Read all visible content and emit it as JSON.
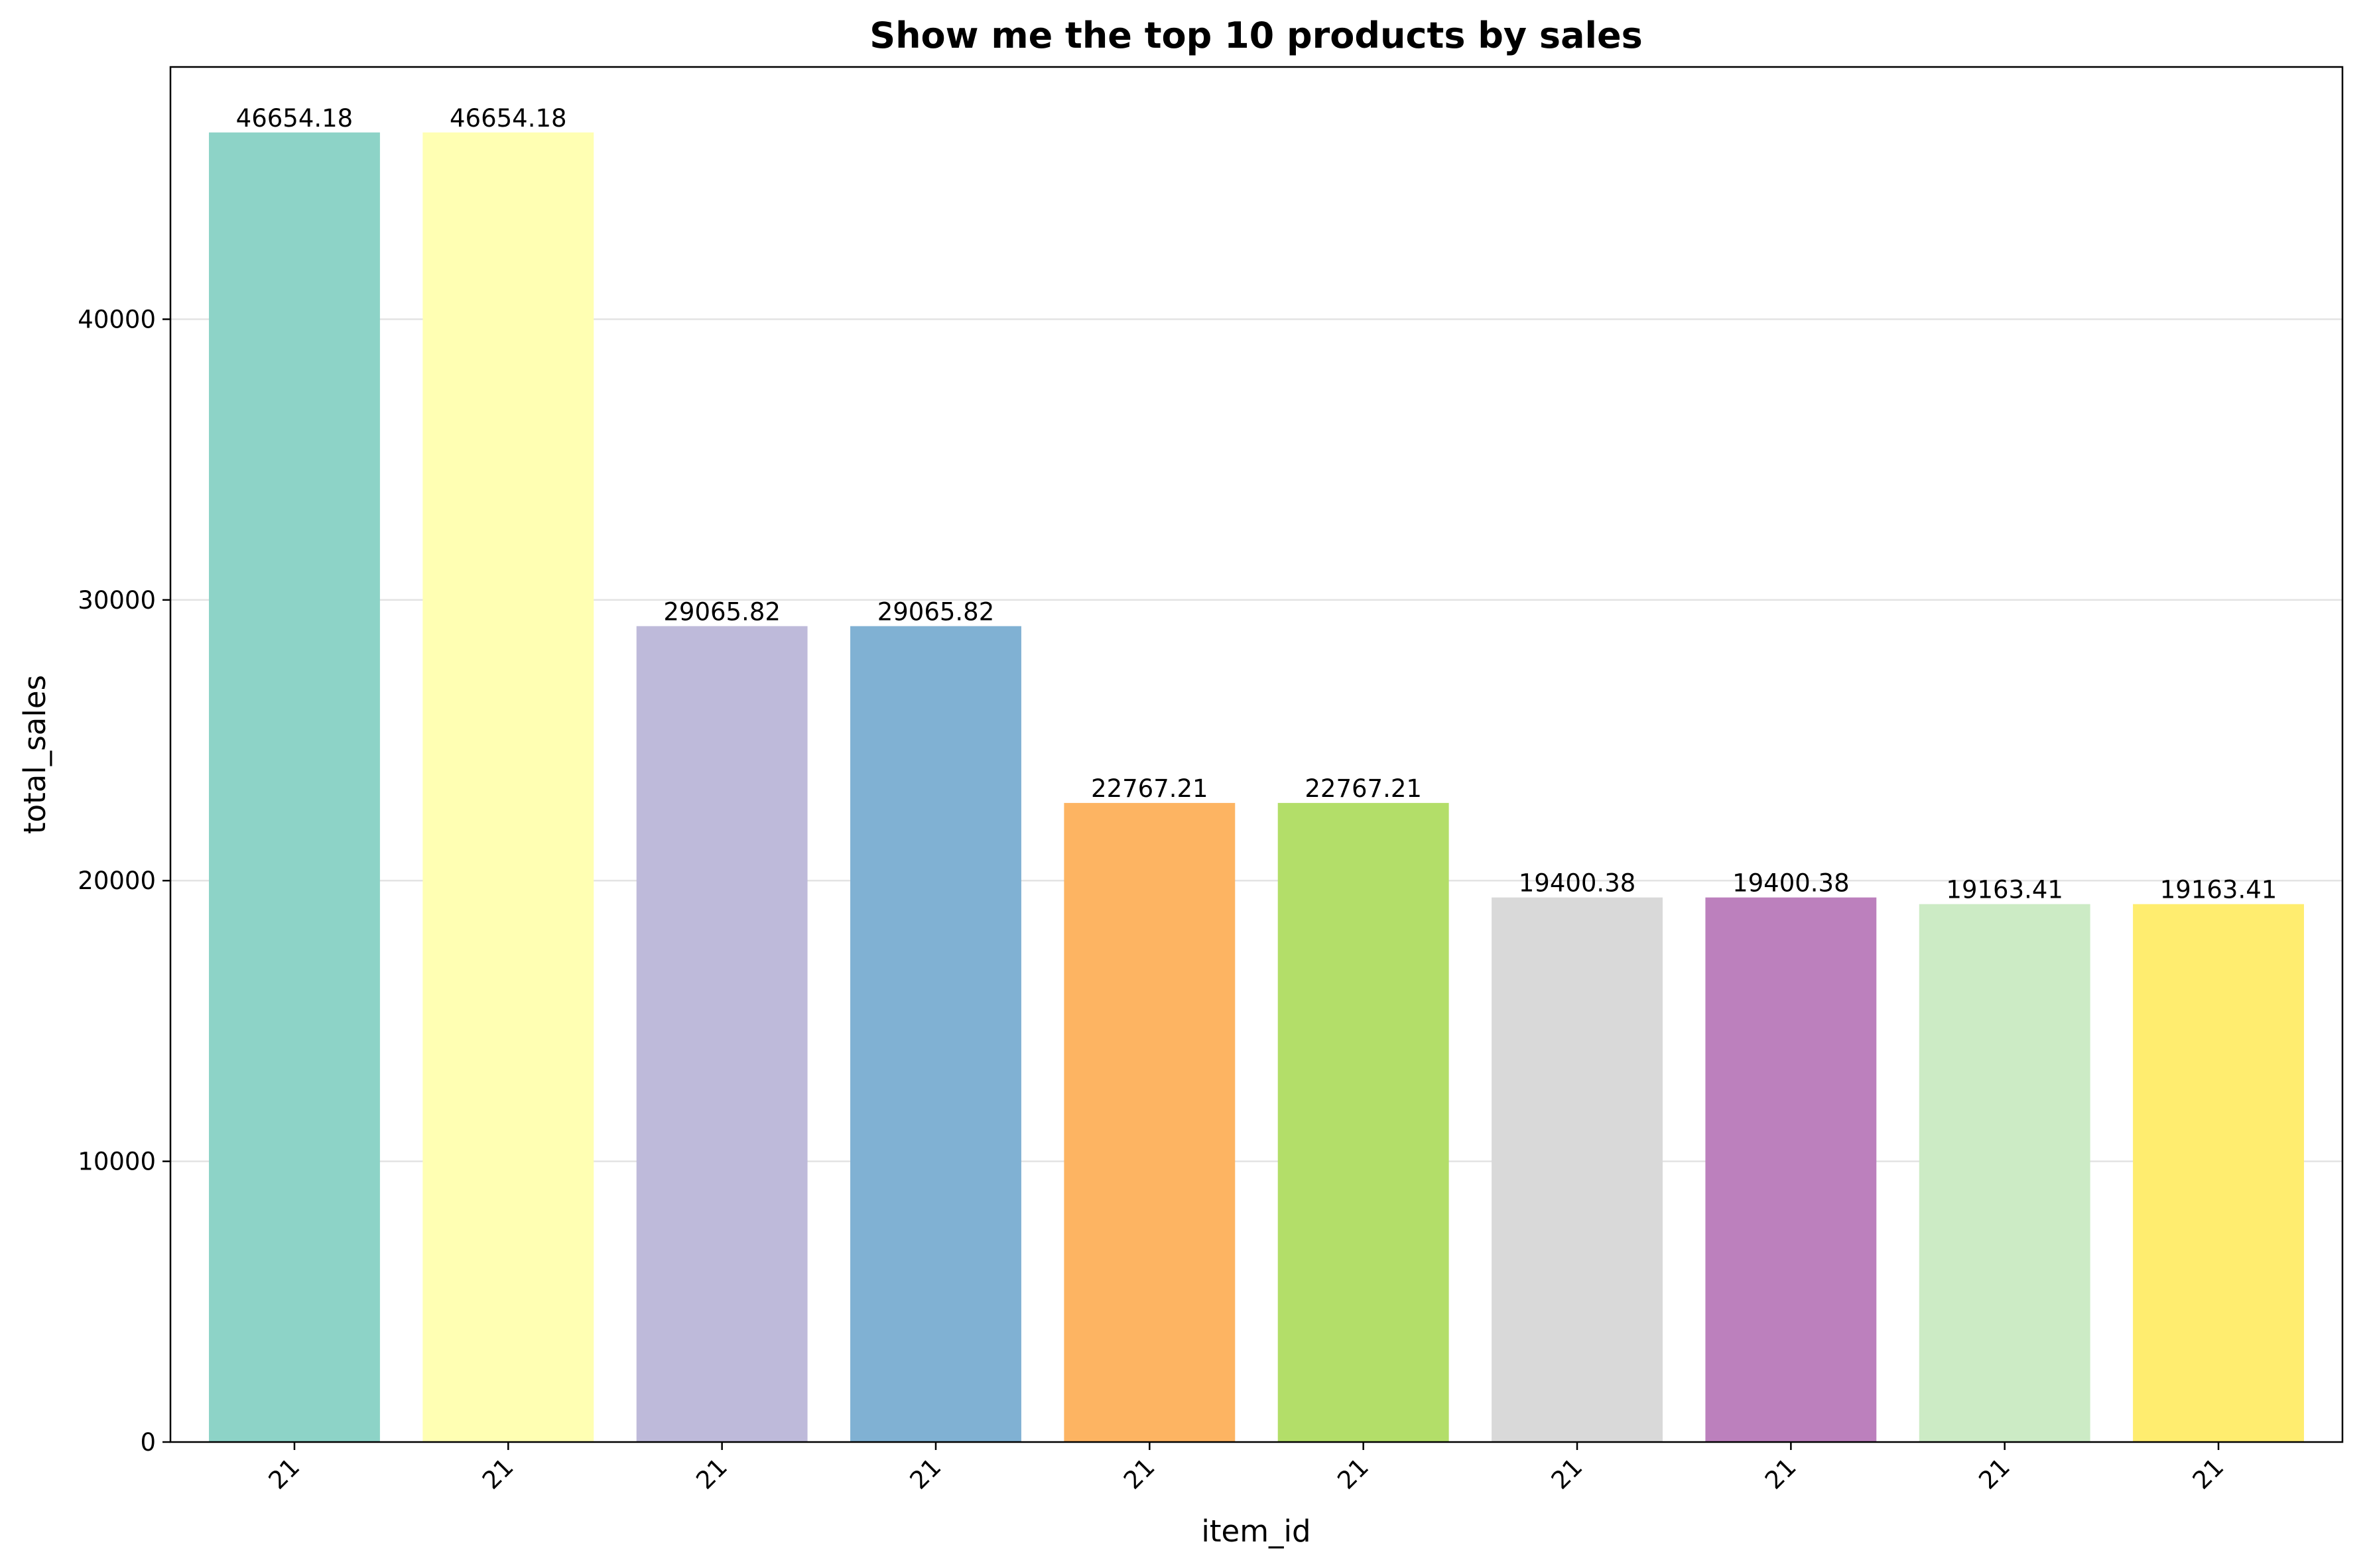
{
  "chart_data": {
    "type": "bar",
    "title": "Show me the top 10 products by sales",
    "xlabel": "item_id",
    "ylabel": "total_sales",
    "categories": [
      "21",
      "21",
      "21",
      "21",
      "21",
      "21",
      "21",
      "21",
      "21",
      "21"
    ],
    "values": [
      46654.18,
      46654.18,
      29065.82,
      29065.82,
      22767.21,
      22767.21,
      19400.38,
      19400.38,
      19163.41,
      19163.41
    ],
    "value_labels": [
      "46654.18",
      "46654.18",
      "29065.82",
      "29065.82",
      "22767.21",
      "22767.21",
      "19400.38",
      "19400.38",
      "19163.41",
      "19163.41"
    ],
    "colors": [
      "#8dd3c7",
      "#ffffb3",
      "#bebada",
      "#80b1d3",
      "#fdb462",
      "#b3de69",
      "#d9d9d9",
      "#bc80bd",
      "#ccebc5",
      "#ffed6f"
    ],
    "ylim": [
      0,
      48987
    ],
    "yticks": [
      0,
      10000,
      20000,
      30000,
      40000
    ],
    "ytick_labels": [
      "0",
      "10000",
      "20000",
      "30000",
      "40000"
    ],
    "grid": "y",
    "xtick_rotation": -45
  }
}
